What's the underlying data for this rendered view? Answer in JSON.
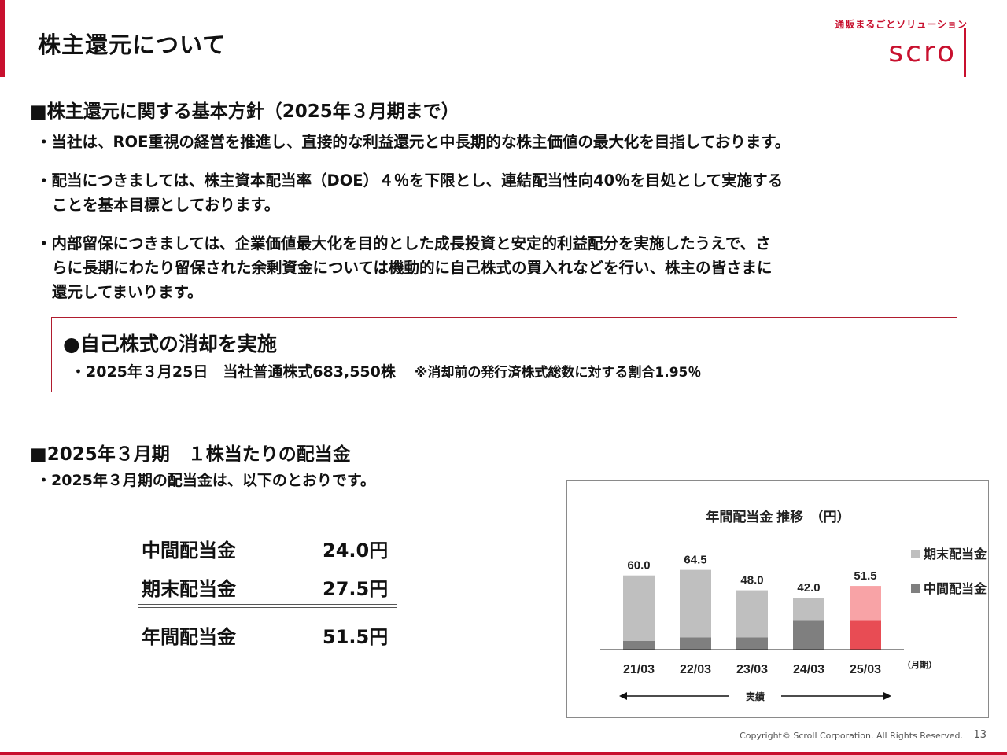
{
  "page": {
    "title": "株主還元について",
    "page_number": "13",
    "copyright": "Copyright© Scroll Corporation. All Rights Reserved."
  },
  "logo": {
    "tagline": "通販まるごとソリューション",
    "word": "scro"
  },
  "policy": {
    "heading": "■株主還元に関する基本方針（2025年３月期まで）",
    "bullets": [
      {
        "line1": "・当社は、ROE重視の経営を推進し、直接的な利益還元と中長期的な株主価値の最大化を目指しております。"
      },
      {
        "line1": "・配当につきましては、株主資本配当率（DOE）４％を下限とし、連結配当性向40％を目処として実施する",
        "line2": "ことを基本目標としております。"
      },
      {
        "line1": "・内部留保につきましては、企業価値最大化を目的とした成長投資と安定的利益配分を実施したうえで、さ",
        "line2": "らに長期にわたり留保された余剰資金については機動的に自己株式の買入れなどを行い、株主の皆さまに",
        "line3": "還元してまいります。"
      }
    ]
  },
  "notice": {
    "title": "●自己株式の消却を実施",
    "detail": "・2025年３月25日　当社普通株式683,550株",
    "note": "※消却前の発行済株式総数に対する割合1.95％"
  },
  "dividend": {
    "heading": "■2025年３月期　１株当たりの配当金",
    "intro": "・2025年３月期の配当金は、以下のとおりです。",
    "rows": [
      {
        "label": "中間配当金",
        "value": "24.0円"
      },
      {
        "label": "期末配当金",
        "value": "27.5円"
      },
      {
        "label": "年間配当金",
        "value": "51.5円"
      }
    ]
  },
  "chart_data": {
    "type": "bar",
    "stacked": true,
    "title": "年間配当金 推移　（円）",
    "categories": [
      "21/03",
      "22/03",
      "23/03",
      "24/03",
      "25/03"
    ],
    "x_unit": "（月期）",
    "totals": [
      "60.0",
      "64.5",
      "48.0",
      "42.0",
      "51.5"
    ],
    "series": [
      {
        "name": "中間配当金",
        "values": [
          7,
          10,
          10,
          24,
          24
        ],
        "color": "#7f7f7f",
        "highlight_color": "#e84c54"
      },
      {
        "name": "期末配当金",
        "values": [
          53,
          54.5,
          38,
          18,
          27.5
        ],
        "color": "#bfbfbf",
        "highlight_color": "#f8a3a6"
      }
    ],
    "highlight_category": "25/03",
    "arrow_label": "実績",
    "ylim": [
      0,
      70
    ],
    "legend_position": "right"
  }
}
